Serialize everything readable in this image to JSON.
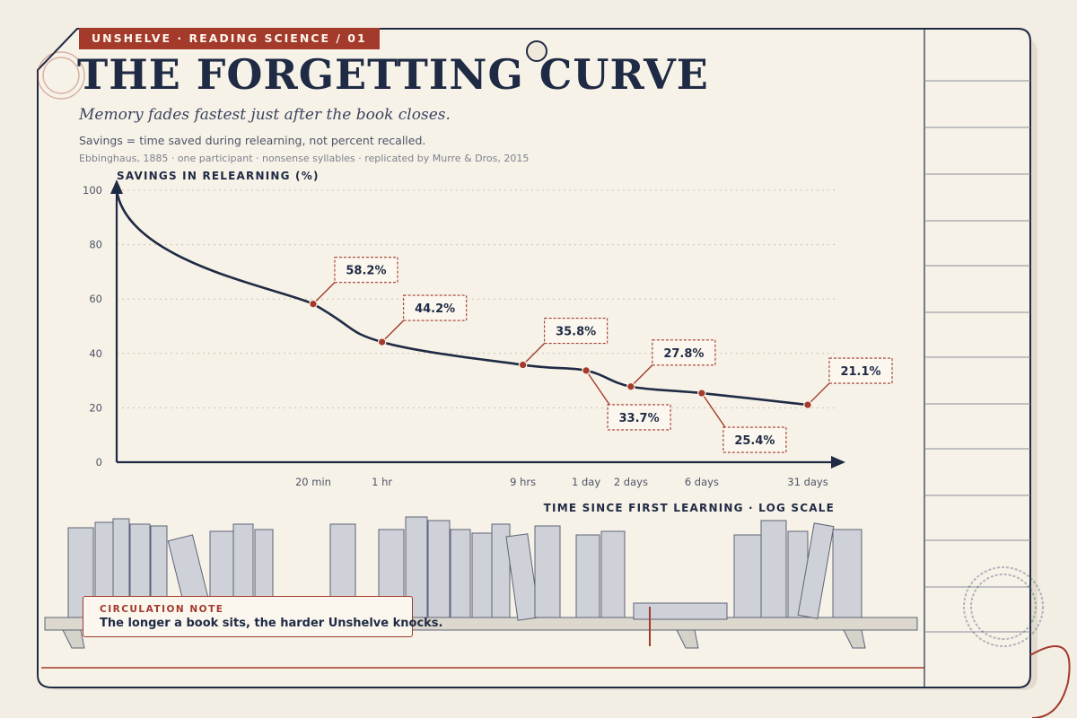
{
  "header": {
    "kicker": "UNSHELVE · READING SCIENCE / 01",
    "title": "THE FORGETTING CURVE",
    "subtitle": "Memory fades fastest just after the book closes.",
    "note": "Savings = time saved during relearning, not percent recalled.",
    "source": "Ebbinghaus, 1885 · one participant · nonsense syllables · replicated by Murre & Dros, 2015"
  },
  "callout": {
    "kicker": "CIRCULATION NOTE",
    "text": "The longer a book sits, the harder Unshelve knocks."
  },
  "colors": {
    "ink": "#1f2a44",
    "accent": "#a33a2c",
    "paper": "#f3eee4",
    "card": "#f7f2e7"
  },
  "chart_data": {
    "type": "line",
    "title": "THE FORGETTING CURVE",
    "xlabel": "TIME SINCE FIRST LEARNING · LOG SCALE",
    "ylabel": "SAVINGS IN RELEARNING (%)",
    "x_scale": "log",
    "ylim": [
      0,
      100
    ],
    "yticks": [
      0,
      20,
      40,
      60,
      80,
      100
    ],
    "grid": "horizontal dotted",
    "start": {
      "x": "0 min",
      "y": 100
    },
    "points": [
      {
        "x": "20 min",
        "y": 58.2,
        "label": "58.2%",
        "label_side": "above"
      },
      {
        "x": "1 hr",
        "y": 44.2,
        "label": "44.2%",
        "label_side": "above"
      },
      {
        "x": "9 hrs",
        "y": 35.8,
        "label": "35.8%",
        "label_side": "above"
      },
      {
        "x": "1 day",
        "y": 33.7,
        "label": "33.7%",
        "label_side": "below"
      },
      {
        "x": "2 days",
        "y": 27.8,
        "label": "27.8%",
        "label_side": "above"
      },
      {
        "x": "6 days",
        "y": 25.4,
        "label": "25.4%",
        "label_side": "below"
      },
      {
        "x": "31 days",
        "y": 21.1,
        "label": "21.1%",
        "label_side": "above"
      }
    ]
  }
}
